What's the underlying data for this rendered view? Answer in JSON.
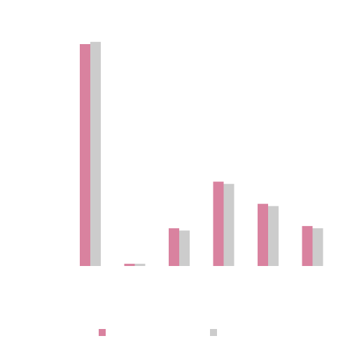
{
  "chart_data": {
    "type": "bar",
    "title": "",
    "xlabel": "",
    "ylabel": "",
    "grid": false,
    "legend_placement": "bottom",
    "categories": [
      "",
      "",
      "",
      "",
      "",
      ""
    ],
    "ylim": [
      0,
      100
    ],
    "series": [
      {
        "color": "#d9829f",
        "values": [
          100,
          1,
          17,
          38,
          28,
          18
        ]
      },
      {
        "color": "#cccccc",
        "values": [
          101,
          1,
          16,
          37,
          27,
          17
        ]
      }
    ]
  }
}
